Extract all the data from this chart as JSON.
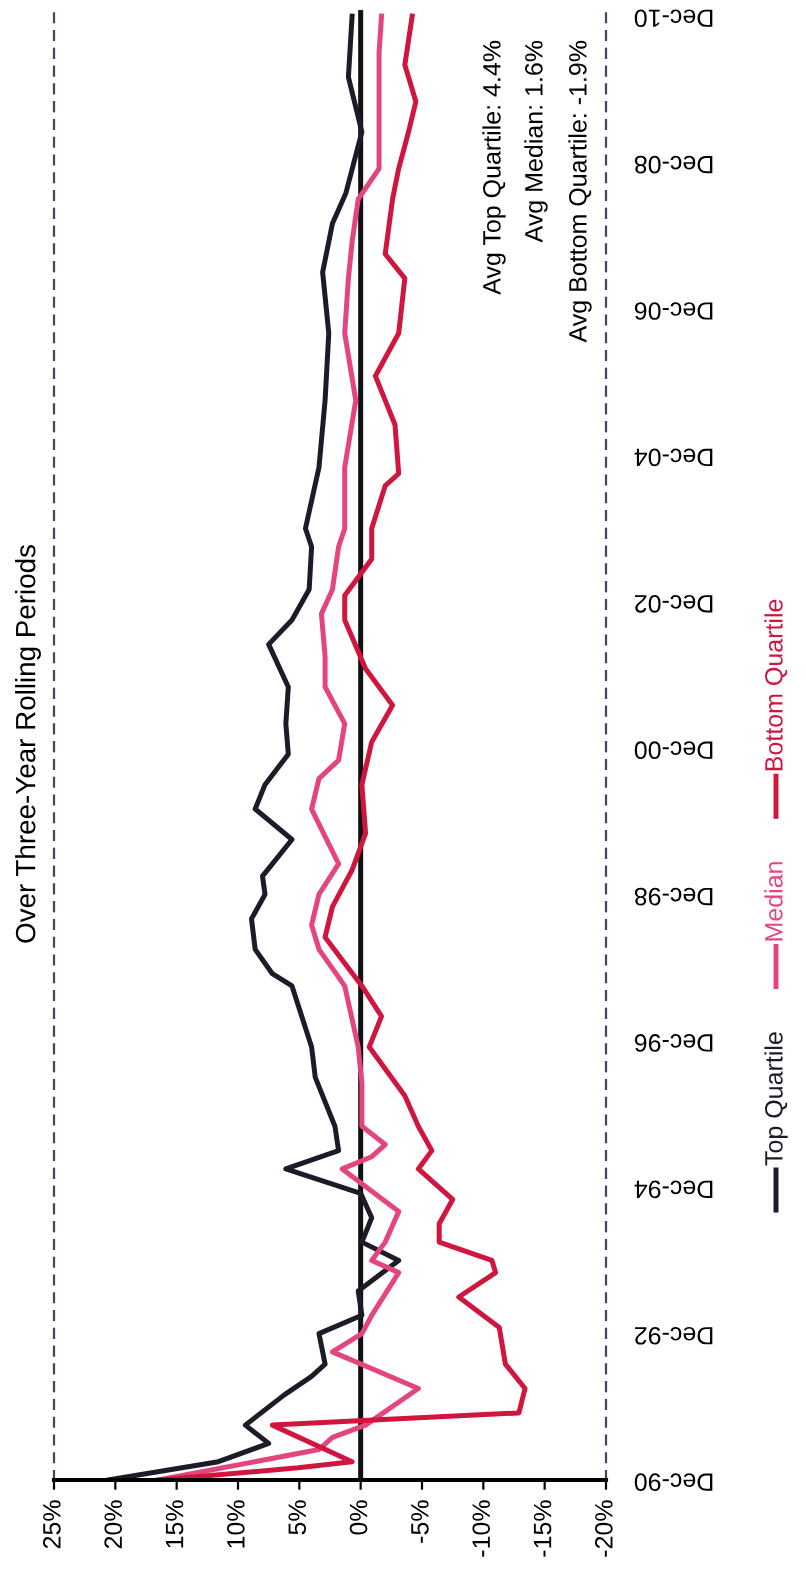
{
  "chart_data": {
    "type": "line",
    "orientation": "horizontal",
    "title": "Over Three-Year Rolling Periods",
    "annotations": [
      "Avg Top Quartile: 4.4%",
      "Avg Median: 1.6%",
      "Avg Bottom Quartile: -1.9%"
    ],
    "ylim": [
      "1990-12",
      "2011-01"
    ],
    "yticks": [
      {
        "value": "1990-12",
        "label": "Dec-90"
      },
      {
        "value": "1992-12",
        "label": "Dec-92"
      },
      {
        "value": "1994-12",
        "label": "Dec-94"
      },
      {
        "value": "1996-12",
        "label": "Dec-96"
      },
      {
        "value": "1998-12",
        "label": "Dec-98"
      },
      {
        "value": "2000-12",
        "label": "Dec-00"
      },
      {
        "value": "2002-12",
        "label": "Dec-02"
      },
      {
        "value": "2004-12",
        "label": "Dec-04"
      },
      {
        "value": "2006-12",
        "label": "Dec-06"
      },
      {
        "value": "2008-12",
        "label": "Dec-08"
      },
      {
        "value": "2010-12",
        "label": "Dec-10"
      }
    ],
    "xlim": [
      25,
      -20
    ],
    "xticks": [
      {
        "value": 25,
        "label": "25%"
      },
      {
        "value": 20,
        "label": "20%"
      },
      {
        "value": 15,
        "label": "15%"
      },
      {
        "value": 10,
        "label": "10%"
      },
      {
        "value": 5,
        "label": "5%"
      },
      {
        "value": 0,
        "label": "0%"
      },
      {
        "value": -5,
        "label": "-5%"
      },
      {
        "value": -10,
        "label": "-10%"
      },
      {
        "value": -15,
        "label": "-15%"
      },
      {
        "value": -20,
        "label": "-20%"
      }
    ],
    "ref_lines": [
      {
        "axis": "x",
        "value": 0,
        "color": "#111111"
      }
    ],
    "grid": false,
    "legend": "right",
    "marker": "none",
    "line_style": "solid",
    "series": [
      {
        "name": "Top Quartile",
        "color": "#1c1c28",
        "x": [
          "1990-12",
          "1991-03",
          "1991-06",
          "1991-09",
          "1992-02",
          "1992-05",
          "1992-07",
          "1992-12",
          "1993-03",
          "1993-07",
          "1993-12",
          "1994-03",
          "1994-07",
          "1994-11",
          "1995-03",
          "1995-06",
          "1995-10",
          "1996-02",
          "1996-06",
          "1996-11",
          "1997-09",
          "1997-11",
          "1998-03",
          "1998-08",
          "1998-12",
          "1999-03",
          "1999-09",
          "2000-02",
          "2000-06",
          "2000-11",
          "2001-04",
          "2001-10",
          "2002-05",
          "2002-09",
          "2003-02",
          "2003-09",
          "2003-12",
          "2004-10",
          "2005-09",
          "2006-08",
          "2007-06",
          "2008-02",
          "2008-07",
          "2009-05",
          "2010-02",
          "2010-12"
        ],
        "values": [
          20.6,
          11.6,
          7.5,
          9.4,
          6.2,
          4.0,
          2.9,
          3.4,
          -0.1,
          0.2,
          -3.1,
          -0.1,
          -0.9,
          0.0,
          6.1,
          1.8,
          2.1,
          2.9,
          3.7,
          4.0,
          5.6,
          7.2,
          8.6,
          8.9,
          7.8,
          8.0,
          5.6,
          8.6,
          7.8,
          5.9,
          6.1,
          5.9,
          7.5,
          5.6,
          4.2,
          4.0,
          4.5,
          3.4,
          2.9,
          2.6,
          3.1,
          2.3,
          1.2,
          -0.1,
          1.0,
          0.7
        ]
      },
      {
        "name": "Median",
        "color": "#e4457e",
        "x": [
          "1990-12",
          "1991-05",
          "1991-07",
          "1991-09",
          "1992-03",
          "1992-09",
          "1992-12",
          "1993-03",
          "1993-10",
          "1993-12",
          "1994-03",
          "1994-08",
          "1995-03",
          "1995-05",
          "1995-07",
          "1995-10",
          "1996-05",
          "1996-11",
          "1997-09",
          "1998-03",
          "1998-07",
          "1998-12",
          "1999-05",
          "2000-02",
          "2000-07",
          "2000-10",
          "2001-04",
          "2001-10",
          "2002-03",
          "2002-10",
          "2003-02",
          "2003-09",
          "2003-12",
          "2004-10",
          "2005-09",
          "2006-08",
          "2007-05",
          "2007-11",
          "2008-06",
          "2008-11",
          "2009-10",
          "2010-06",
          "2010-12"
        ],
        "values": [
          16.5,
          3.4,
          2.3,
          -0.4,
          -4.7,
          2.3,
          -0.1,
          -0.9,
          -3.1,
          -0.9,
          -2.0,
          -3.1,
          1.5,
          -0.9,
          -2.0,
          -0.1,
          -0.1,
          0.2,
          1.3,
          3.4,
          4.0,
          3.4,
          1.8,
          4.0,
          3.4,
          1.8,
          1.3,
          2.9,
          2.9,
          3.2,
          2.3,
          1.8,
          1.3,
          1.3,
          0.4,
          1.3,
          1.0,
          0.7,
          0.2,
          -1.5,
          -1.5,
          -1.5,
          -1.7
        ]
      },
      {
        "name": "Bottom Quartile",
        "color": "#d0163e",
        "x": [
          "1990-12",
          "1991-02",
          "1991-03",
          "1991-09",
          "1991-11",
          "1992-03",
          "1992-07",
          "1993-01",
          "1993-06",
          "1993-10",
          "1993-12",
          "1994-03",
          "1994-06",
          "1994-10",
          "1995-03",
          "1995-06",
          "1995-10",
          "1996-03",
          "1996-11",
          "1997-04",
          "1997-09",
          "1998-05",
          "1998-10",
          "1999-04",
          "1999-10",
          "2000-06",
          "2001-01",
          "2001-07",
          "2002-01",
          "2002-09",
          "2003-01",
          "2003-07",
          "2003-12",
          "2004-07",
          "2004-09",
          "2005-05",
          "2005-09",
          "2006-01",
          "2006-08",
          "2007-05",
          "2007-09",
          "2008-06",
          "2008-11",
          "2009-05",
          "2009-10",
          "2010-04",
          "2010-12"
        ],
        "values": [
          16.5,
          5.1,
          0.7,
          7.2,
          -12.9,
          -13.4,
          -11.8,
          -11.3,
          -8.0,
          -11.0,
          -10.7,
          -6.4,
          -6.4,
          -7.5,
          -4.7,
          -5.8,
          -4.7,
          -3.6,
          -0.7,
          -1.7,
          -0.1,
          2.9,
          2.3,
          0.7,
          -0.4,
          -0.1,
          -0.9,
          -2.6,
          -0.4,
          1.3,
          1.3,
          -0.9,
          -0.9,
          -2.0,
          -3.1,
          -2.8,
          -2.0,
          -1.2,
          -3.1,
          -3.6,
          -2.0,
          -2.6,
          -3.1,
          -3.9,
          -4.5,
          -3.6,
          -4.2
        ]
      }
    ]
  }
}
